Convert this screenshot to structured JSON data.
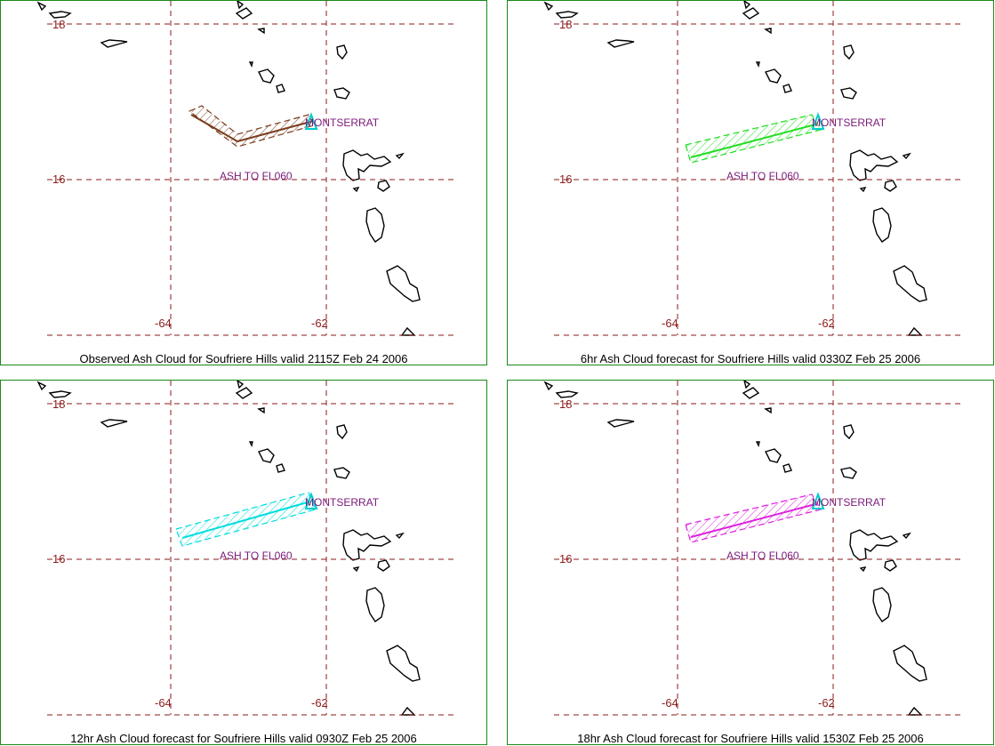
{
  "panels": [
    {
      "caption": "Observed Ash Cloud for Soufriere  Hills valid 2115Z Feb 24 2006",
      "cloud_color": "#7a3e1e",
      "cloud_shape": "bent"
    },
    {
      "caption": "6hr Ash Cloud forecast for Soufriere  Hills valid 0330Z Feb 25 2006",
      "cloud_color": "#22dd22",
      "cloud_shape": "straight-short"
    },
    {
      "caption": "12hr Ash Cloud forecast for Soufriere  Hills valid 0930Z Feb 25 2006",
      "cloud_color": "#00dddd",
      "cloud_shape": "straight-long"
    },
    {
      "caption": "18hr Ash Cloud forecast for Soufriere  Hills valid 1530Z Feb 25 2006",
      "cloud_color": "#dd22dd",
      "cloud_shape": "straight-short"
    }
  ],
  "map": {
    "lat_labels": [
      "18",
      "16"
    ],
    "lon_labels": [
      "-64",
      "-62"
    ],
    "volcano_label": "MONTSERRAT",
    "ash_label": "ASH TO FL060",
    "volcano_marker_color": "#00cccc",
    "grid_color": "#8b1a1a",
    "border_color": "#1a8a1a"
  }
}
